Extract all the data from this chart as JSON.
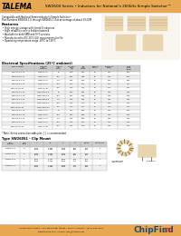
{
  "title_text": "SW260S Series • Inductors for National’s 260kHz Simple Switcher™",
  "logo_text": "TALEMA",
  "logo_sub": "ELECTRONICS, INC",
  "header_bg": "#e8a852",
  "footer_bg": "#e8a852",
  "body_bg": "#ffffff",
  "footer_line1": "Talema Electronics • 101 West Main Street • Pella, IA 50219 • (515) 628-4000",
  "footer_line2": "www.talema.com • E-mail: info@talema.com",
  "chipfind_blue": "#1a5276",
  "chipfind_red": "#cc2222",
  "features_title": "Features",
  "features": [
    "High energy storage with ferrite E inductors",
    "High reliability core to bobbin fastened",
    "Available in both SMD and THT versions",
    "Manufactured to IEC 20/1 (UL) requirements for file",
    "Operating temperature range -40°C to 130°C"
  ],
  "desc1": "Compatible with National Semiconductor’s Simple Switcher™",
  "desc2": "Part Numbers SW260S-1.5 through SW260S-7.4 at an average of about 1% DIM",
  "table1_title": "Electrical Specifications (25°C ambient)",
  "table1_col_headers": [
    "Part Number",
    "Nominal\nPart\nNumber",
    "Typical\nInd.\n(mH)",
    "DC Res.\nmax.\n(Ω)",
    "DC\nmax.\nAmps",
    "Quality\nFactor",
    "Footprint\n(mm)",
    "Lead\nPitch\n(mm)"
  ],
  "table1_rows": [
    [
      "SW260S-1.5-10",
      "LM2574-1.5",
      "68",
      "0.40",
      "0.55",
      "40",
      "1.00",
      "5.00"
    ],
    [
      "SW260S-2.5-10",
      "LM2574-2.5",
      "100",
      "0.60",
      "0.55",
      "40",
      "1.00",
      "5.00"
    ],
    [
      "SW260S-3.3-10",
      "LM2574-3.3",
      "150",
      "0.75",
      "0.45",
      "40",
      "1.00",
      "5.00"
    ],
    [
      "SW260S-5.0-10",
      "LM2574-5.0",
      "220",
      "1.00",
      "0.40",
      "40",
      "1.00",
      "5.00"
    ],
    [
      "SW260S-ADJ-10",
      "LM2574-ADJ",
      "220",
      "1.00",
      "0.40",
      "40",
      "1.00",
      "5.00"
    ],
    [
      "SW260S-1.5-13",
      "LM2574HV-1.5",
      "68",
      "0.40",
      "0.55",
      "40",
      "1.50",
      "7.50"
    ],
    [
      "SW260S-2.5-13",
      "LM2574HV-2.5",
      "100",
      "0.60",
      "0.55",
      "40",
      "1.50",
      "7.50"
    ],
    [
      "SW260S-3.3-13",
      "LM2574HV-3.3",
      "150",
      "0.75",
      "0.45",
      "40",
      "1.50",
      "7.50"
    ],
    [
      "SW260S-5.0-13",
      "LM2574HV-5.0",
      "220",
      "1.00",
      "0.40",
      "40",
      "1.50",
      "7.50"
    ],
    [
      "SW260S-ADJ-13",
      "LM2574HV-ADJ",
      "220",
      "1.00",
      "0.40",
      "40",
      "1.50",
      "7.50"
    ],
    [
      "SW260S-1.5-15",
      "LM2575-1.5",
      "68",
      "0.40",
      "0.55",
      "40",
      "1.50",
      "7.50"
    ],
    [
      "SW260S-2.5-15",
      "LM2575-2.5",
      "100",
      "0.60",
      "0.55",
      "40",
      "1.50",
      "7.50"
    ],
    [
      "SW260S-3.3-15",
      "LM2575-3.3",
      "150",
      "0.75",
      "0.45",
      "40",
      "1.50",
      "7.50"
    ],
    [
      "SW260S-5.0-15",
      "LM2575-5.0",
      "220",
      "1.00",
      "0.40",
      "40",
      "1.50",
      "7.50"
    ],
    [
      "SW260S-ADJ-15",
      "LM2575-ADJ",
      "220",
      "1.00",
      "0.40",
      "40",
      "1.50",
      "7.50"
    ]
  ],
  "table1_footnote": "* Note: Series connection adds pins: [ ] = recommended",
  "table2_title": "Type SW260S1 - Clip Mount",
  "table2_col_headers": [
    "Part\nNumber",
    "Case\nCode",
    "A",
    "B",
    "C",
    "D",
    "E/5.08",
    "LEAD PINS",
    "Ordering\nInfo"
  ],
  "table2_rows": [
    [
      "SW260S-x-10",
      "C8",
      "8.000\n8.000",
      "10.050\n10.800",
      "8.000\n8.000",
      "4.60\n4.80",
      "5.60\n5.80",
      "2",
      "SW260S-x-10"
    ],
    [
      "SW260S-x-13",
      "C8",
      "8.000\n8.000",
      "10.050\n10.800",
      "8.000\n8.000",
      "4.60\n4.80",
      "5.60\n5.80",
      "2",
      "SW260S-x-13"
    ],
    [
      "SW260S-x-15",
      "T5",
      "4.850\n5.150",
      "10.150\n10.350",
      "4.850\n5.150",
      "2.90\n3.10",
      "4.60\n4.80",
      "4",
      "SW260S-x-15"
    ],
    [
      "SW260S-x-16",
      "T5",
      "4.850\n5.150",
      "10.150\n10.350",
      "4.850\n5.150",
      "2.90\n3.10",
      "4.60\n4.80",
      "4",
      "SW260S-x-16"
    ]
  ],
  "img_bg": "#e8d5b0",
  "img_border": "#888888",
  "table_header_bg": "#cccccc",
  "table_alt_bg": "#f0f0f0",
  "table_line": "#aaaaaa"
}
